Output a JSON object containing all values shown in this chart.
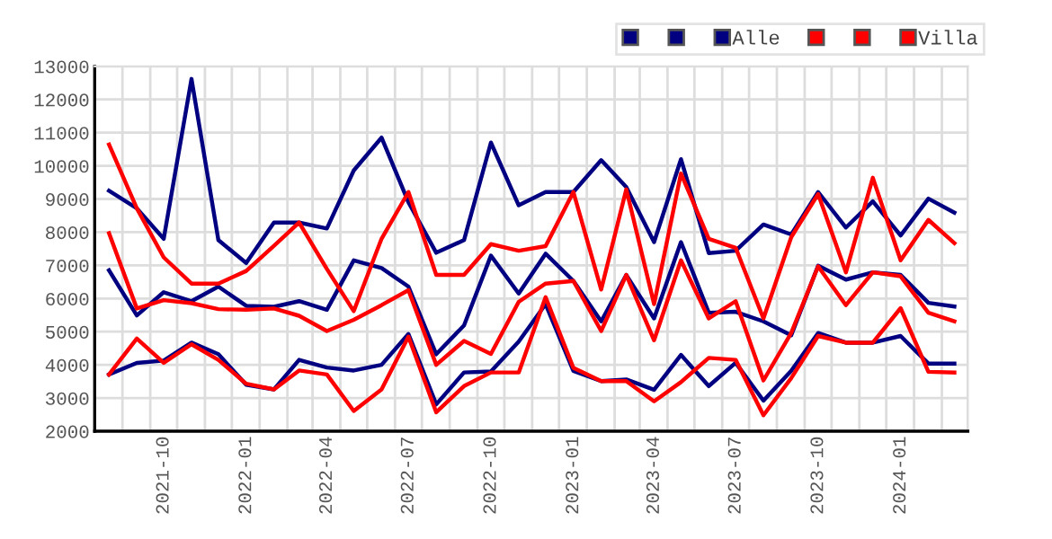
{
  "chart_data": {
    "type": "line",
    "x": [
      "2021-08",
      "2021-09",
      "2021-10",
      "2021-11",
      "2021-12",
      "2022-01",
      "2022-02",
      "2022-03",
      "2022-04",
      "2022-05",
      "2022-06",
      "2022-07",
      "2022-08",
      "2022-09",
      "2022-10",
      "2022-11",
      "2022-12",
      "2023-01",
      "2023-02",
      "2023-03",
      "2023-04",
      "2023-05",
      "2023-06",
      "2023-07",
      "2023-08",
      "2023-09",
      "2023-10",
      "2023-11",
      "2023-12",
      "2024-01",
      "2024-02",
      "2024-03"
    ],
    "series": [
      {
        "color": "#000080",
        "values": [
          9250,
          8720,
          7800,
          12620,
          7760,
          7070,
          8290,
          8290,
          8110,
          9860,
          10850,
          8900,
          7380,
          7760,
          10700,
          8810,
          9210,
          9210,
          10170,
          9360,
          7700,
          10200,
          7370,
          7440,
          8230,
          7930,
          9210,
          8140,
          8930,
          7900,
          9010,
          8590
        ]
      },
      {
        "color": "#000080",
        "values": [
          6850,
          5490,
          6190,
          5920,
          6360,
          5780,
          5750,
          5920,
          5660,
          7150,
          6920,
          6360,
          4320,
          5190,
          7290,
          6150,
          7350,
          6530,
          5310,
          6710,
          5400,
          7700,
          5570,
          5600,
          5310,
          4890,
          6990,
          6570,
          6790,
          6710,
          5870,
          5760
        ]
      },
      {
        "name": "Alle",
        "color": "#000080",
        "values": [
          3710,
          4060,
          4130,
          4670,
          4320,
          3400,
          3260,
          4150,
          3920,
          3830,
          4000,
          4930,
          2810,
          3770,
          3800,
          4700,
          5830,
          3820,
          3510,
          3560,
          3250,
          4300,
          3360,
          4060,
          2920,
          3820,
          4960,
          4670,
          4670,
          4870,
          4040,
          4040
        ]
      },
      {
        "color": "#ff0000",
        "values": [
          10640,
          8720,
          7240,
          6450,
          6450,
          6830,
          7590,
          8290,
          6890,
          5620,
          7800,
          9210,
          6710,
          6710,
          7640,
          7440,
          7580,
          9210,
          6270,
          9290,
          5830,
          9770,
          7800,
          7530,
          5400,
          7850,
          9150,
          6790,
          9640,
          7150,
          8370,
          7670
        ]
      },
      {
        "color": "#ff0000",
        "values": [
          7970,
          5700,
          5950,
          5860,
          5680,
          5660,
          5700,
          5480,
          5020,
          5360,
          5800,
          6250,
          4000,
          4720,
          4330,
          5900,
          6450,
          6530,
          5020,
          6710,
          4740,
          7150,
          5400,
          5920,
          3530,
          4960,
          6970,
          5800,
          6790,
          6670,
          5570,
          5310
        ]
      },
      {
        "name": "Villa",
        "color": "#ff0000",
        "values": [
          3710,
          4790,
          4060,
          4620,
          4150,
          3430,
          3260,
          3830,
          3710,
          2610,
          3260,
          4850,
          2570,
          3360,
          3770,
          3770,
          6040,
          3910,
          3510,
          3510,
          2900,
          3480,
          4210,
          4150,
          2480,
          3600,
          4870,
          4670,
          4670,
          5710,
          3790,
          3770
        ]
      }
    ],
    "xlim": [
      "2021-07-16",
      "2024-03-16"
    ],
    "xticks": [
      {
        "value": "2021-10",
        "label": "2021-10"
      },
      {
        "value": "2022-01",
        "label": "2022-01"
      },
      {
        "value": "2022-04",
        "label": "2022-04"
      },
      {
        "value": "2022-07",
        "label": "2022-07"
      },
      {
        "value": "2022-10",
        "label": "2022-10"
      },
      {
        "value": "2023-01",
        "label": "2023-01"
      },
      {
        "value": "2023-04",
        "label": "2023-04"
      },
      {
        "value": "2023-07",
        "label": "2023-07"
      },
      {
        "value": "2023-10",
        "label": "2023-10"
      },
      {
        "value": "2024-01",
        "label": "2024-01"
      }
    ],
    "ylim": [
      2000,
      13000
    ],
    "yticks": [
      2000,
      3000,
      4000,
      5000,
      6000,
      7000,
      8000,
      9000,
      10000,
      11000,
      12000,
      13000
    ],
    "grid": true,
    "legend": "top right",
    "marker": "none",
    "line_style": "solid"
  }
}
